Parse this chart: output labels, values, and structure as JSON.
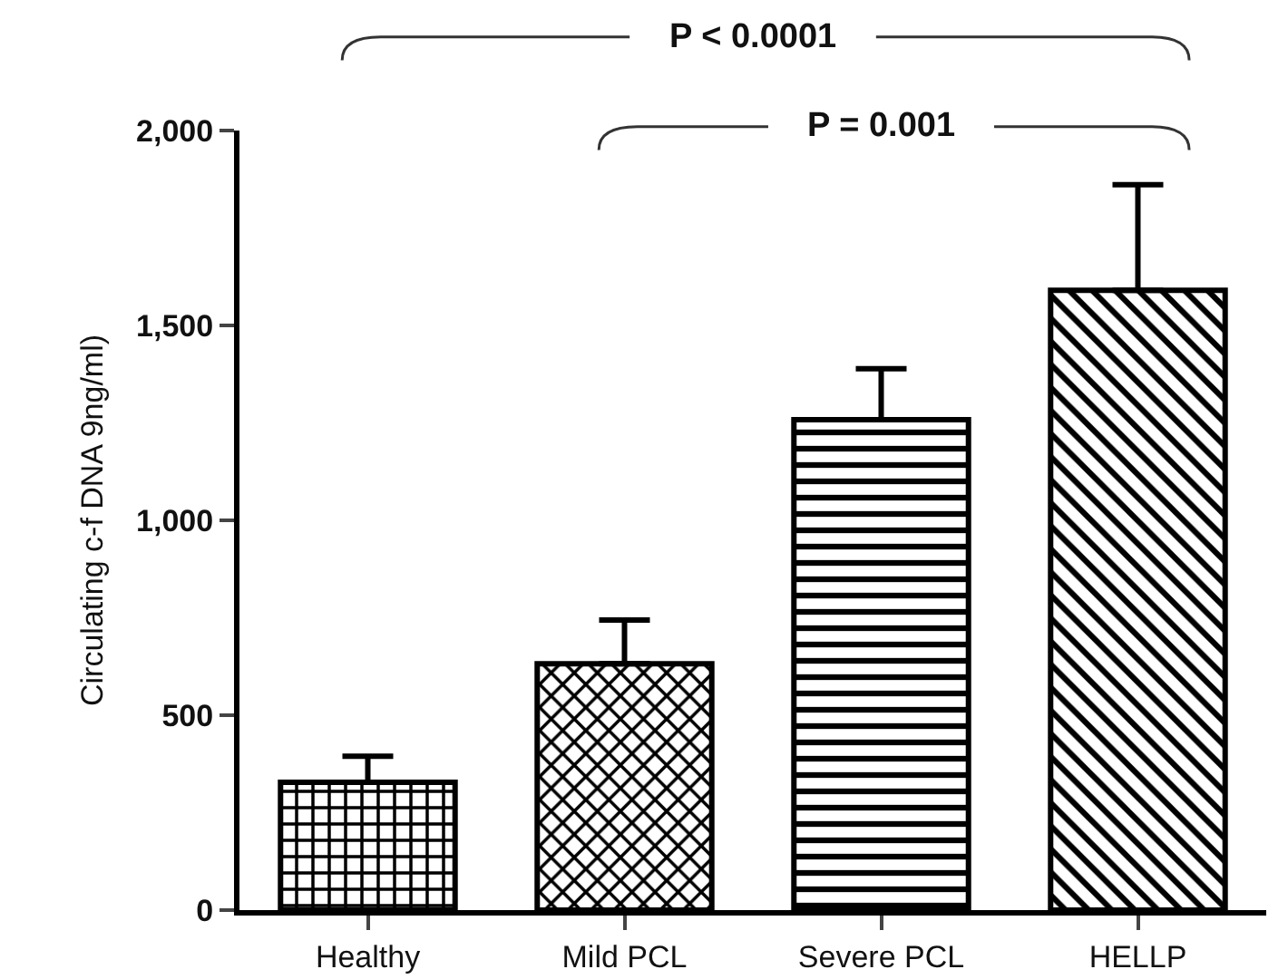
{
  "chart_data": {
    "type": "bar",
    "ylabel": "Circulating c-f DNA 9ng/ml)",
    "categories": [
      "Healthy",
      "Mild PCL",
      "Severe PCL",
      "HELLP"
    ],
    "values": [
      328,
      632,
      1258,
      1590
    ],
    "errors": [
      [
        328,
        395
      ],
      [
        632,
        744
      ],
      [
        1258,
        1389
      ],
      [
        1590,
        1861
      ]
    ],
    "colors": [
      "#000000",
      "#000000",
      "#000000",
      "#000000"
    ],
    "ylim": [
      0,
      2000
    ],
    "yticks": [
      {
        "value": 0,
        "label": "0"
      },
      {
        "value": 500,
        "label": "500"
      },
      {
        "value": 1000,
        "label": "1,000"
      },
      {
        "value": 1500,
        "label": "1,500"
      },
      {
        "value": 2000,
        "label": "2,000"
      }
    ],
    "annotations": [
      "P < 0.0001",
      "P = 0.001"
    ],
    "grid": false
  }
}
